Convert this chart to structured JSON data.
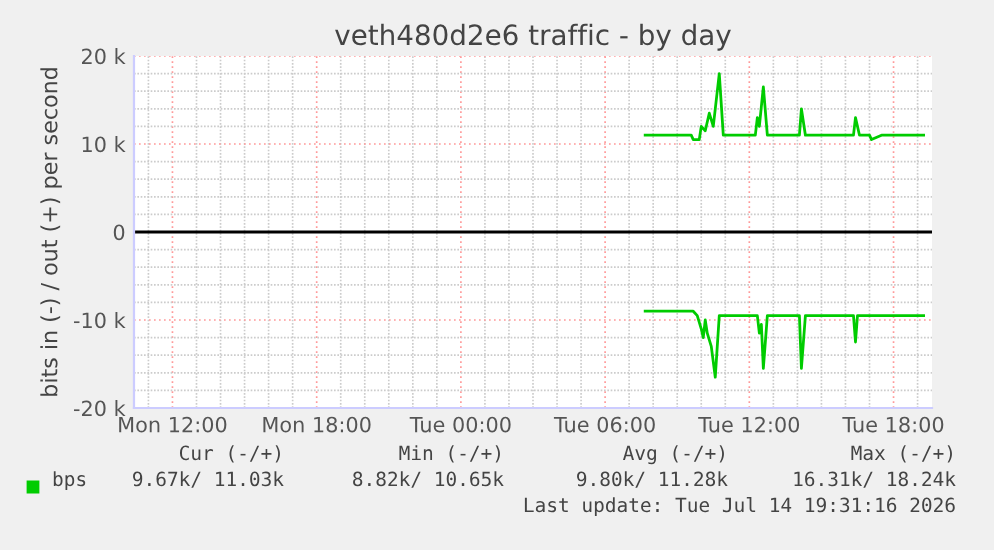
{
  "chart_data": {
    "type": "line",
    "title": "veth480d2e6 traffic - by day",
    "ylabel": "bits in (-) / out (+) per second",
    "xlim": [
      "2026-07-13T10:24",
      "2026-07-14T19:36"
    ],
    "ylim": [
      -20000,
      20000
    ],
    "xticks": [
      {
        "value": "2026-07-13T11:00",
        "label": null
      },
      {
        "value": "2026-07-13T12:00",
        "label": "Mon 12:00"
      },
      {
        "value": "2026-07-13T13:00",
        "label": null
      },
      {
        "value": "2026-07-13T14:00",
        "label": null
      },
      {
        "value": "2026-07-13T15:00",
        "label": null
      },
      {
        "value": "2026-07-13T16:00",
        "label": null
      },
      {
        "value": "2026-07-13T17:00",
        "label": null
      },
      {
        "value": "2026-07-13T18:00",
        "label": "Mon 18:00"
      },
      {
        "value": "2026-07-13T19:00",
        "label": null
      },
      {
        "value": "2026-07-13T20:00",
        "label": null
      },
      {
        "value": "2026-07-13T21:00",
        "label": null
      },
      {
        "value": "2026-07-13T22:00",
        "label": null
      },
      {
        "value": "2026-07-13T23:00",
        "label": null
      },
      {
        "value": "2026-07-14T00:00",
        "label": "Tue 00:00"
      },
      {
        "value": "2026-07-14T01:00",
        "label": null
      },
      {
        "value": "2026-07-14T02:00",
        "label": null
      },
      {
        "value": "2026-07-14T03:00",
        "label": null
      },
      {
        "value": "2026-07-14T04:00",
        "label": null
      },
      {
        "value": "2026-07-14T05:00",
        "label": null
      },
      {
        "value": "2026-07-14T06:00",
        "label": "Tue 06:00"
      },
      {
        "value": "2026-07-14T07:00",
        "label": null
      },
      {
        "value": "2026-07-14T08:00",
        "label": null
      },
      {
        "value": "2026-07-14T09:00",
        "label": null
      },
      {
        "value": "2026-07-14T10:00",
        "label": null
      },
      {
        "value": "2026-07-14T11:00",
        "label": null
      },
      {
        "value": "2026-07-14T12:00",
        "label": "Tue 12:00"
      },
      {
        "value": "2026-07-14T13:00",
        "label": null
      },
      {
        "value": "2026-07-14T14:00",
        "label": null
      },
      {
        "value": "2026-07-14T15:00",
        "label": null
      },
      {
        "value": "2026-07-14T16:00",
        "label": null
      },
      {
        "value": "2026-07-14T17:00",
        "label": null
      },
      {
        "value": "2026-07-14T18:00",
        "label": "Tue 18:00"
      },
      {
        "value": "2026-07-14T19:00",
        "label": null
      }
    ],
    "yticks": [
      {
        "value": -20000,
        "label": "-20 k"
      },
      {
        "value": -18000,
        "label": null
      },
      {
        "value": -16000,
        "label": null
      },
      {
        "value": -14000,
        "label": null
      },
      {
        "value": -12000,
        "label": null
      },
      {
        "value": -10000,
        "label": "-10 k"
      },
      {
        "value": -8000,
        "label": null
      },
      {
        "value": -6000,
        "label": null
      },
      {
        "value": -4000,
        "label": null
      },
      {
        "value": -2000,
        "label": null
      },
      {
        "value": 0,
        "label": "0"
      },
      {
        "value": 2000,
        "label": null
      },
      {
        "value": 4000,
        "label": null
      },
      {
        "value": 6000,
        "label": null
      },
      {
        "value": 8000,
        "label": null
      },
      {
        "value": 10000,
        "label": "10 k"
      },
      {
        "value": 12000,
        "label": null
      },
      {
        "value": 14000,
        "label": null
      },
      {
        "value": 16000,
        "label": null
      },
      {
        "value": 18000,
        "label": null
      },
      {
        "value": 20000,
        "label": "20 k"
      }
    ],
    "grid": true,
    "legend": "bottom",
    "ref_lines": [
      {
        "axis": "y",
        "value": 0,
        "color": "#000000"
      }
    ],
    "series": [
      {
        "name": "bps",
        "color": "#00cc00",
        "x": [
          "2026-07-14T07:40",
          "2026-07-14T09:35",
          "2026-07-14T09:40",
          "2026-07-14T09:55",
          "2026-07-14T10:00",
          "2026-07-14T10:10",
          "2026-07-14T10:20",
          "2026-07-14T10:30",
          "2026-07-14T10:35",
          "2026-07-14T10:45",
          "2026-07-14T10:55",
          "2026-07-14T11:05",
          "2026-07-14T12:15",
          "2026-07-14T12:20",
          "2026-07-14T12:25",
          "2026-07-14T12:35",
          "2026-07-14T12:45",
          "2026-07-14T14:05",
          "2026-07-14T14:10",
          "2026-07-14T14:20",
          "2026-07-14T16:20",
          "2026-07-14T16:25",
          "2026-07-14T16:35",
          "2026-07-14T17:00",
          "2026-07-14T17:05",
          "2026-07-14T17:30",
          "2026-07-14T19:15"
        ],
        "values": [
          11000,
          11000,
          10500,
          10500,
          12000,
          11500,
          13500,
          12000,
          14000,
          18000,
          11000,
          11000,
          11000,
          13000,
          12000,
          16500,
          11000,
          11000,
          14000,
          11000,
          11000,
          13000,
          11000,
          11000,
          10500,
          11000,
          11000
        ]
      },
      {
        "color": "#00cc00",
        "x": [
          "2026-07-14T07:40",
          "2026-07-14T09:40",
          "2026-07-14T09:50",
          "2026-07-14T10:00",
          "2026-07-14T10:05",
          "2026-07-14T10:10",
          "2026-07-14T10:15",
          "2026-07-14T10:25",
          "2026-07-14T10:35",
          "2026-07-14T10:45",
          "2026-07-14T11:05",
          "2026-07-14T12:20",
          "2026-07-14T12:25",
          "2026-07-14T12:30",
          "2026-07-14T12:35",
          "2026-07-14T12:45",
          "2026-07-14T14:05",
          "2026-07-14T14:10",
          "2026-07-14T14:20",
          "2026-07-14T16:20",
          "2026-07-14T16:25",
          "2026-07-14T16:30",
          "2026-07-14T19:15"
        ],
        "values": [
          -9000,
          -9000,
          -9500,
          -11000,
          -12000,
          -10000,
          -11500,
          -13000,
          -16500,
          -9500,
          -9500,
          -9500,
          -11500,
          -10500,
          -15500,
          -9500,
          -9500,
          -15500,
          -9500,
          -9500,
          -12500,
          -9500,
          -9500
        ]
      }
    ],
    "annotations": [
      "Cur (-/+)",
      "Min (-/+)",
      "Avg (-/+)",
      "Max (-/+)",
      "9.67k/ 11.03k",
      "8.82k/ 10.65k",
      "9.80k/ 11.28k",
      "16.31k/ 18.24k",
      "Last update: Tue Jul 14 19:31:16 2026"
    ]
  }
}
